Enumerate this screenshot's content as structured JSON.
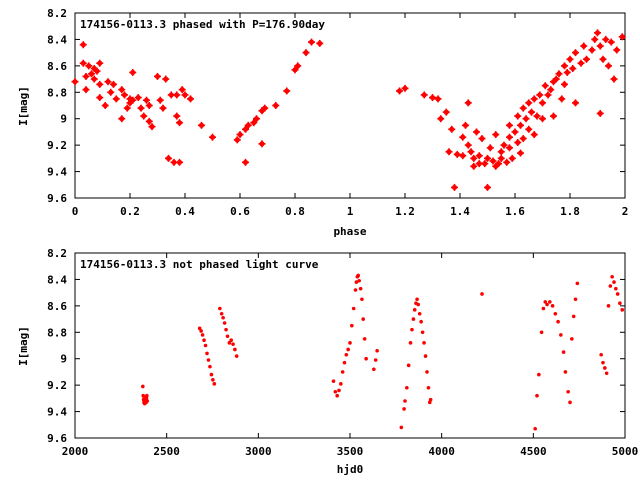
{
  "chart_data": [
    {
      "type": "scatter",
      "title": "174156-0113.3 phased with P=176.90day",
      "xlabel": "phase",
      "ylabel": "I[mag]",
      "xlim": [
        0,
        2
      ],
      "ylim": [
        8.2,
        9.6
      ],
      "y_inverted": true,
      "grid": false,
      "marker_color": "#ff0000",
      "marker": "star",
      "x_ticks": [
        "0",
        "0.2",
        "0.4",
        "0.6",
        "0.8",
        "1",
        "1.2",
        "1.4",
        "1.6",
        "1.8",
        "2"
      ],
      "y_ticks": [
        "8.2",
        "8.4",
        "8.6",
        "8.8",
        "9",
        "9.2",
        "9.4",
        "9.6"
      ],
      "series": [
        {
          "points": [
            [
              0.0,
              8.72
            ],
            [
              0.03,
              8.44
            ],
            [
              0.03,
              8.58
            ],
            [
              0.04,
              8.68
            ],
            [
              0.05,
              8.6
            ],
            [
              0.06,
              8.66
            ],
            [
              0.07,
              8.62
            ],
            [
              0.07,
              8.7
            ],
            [
              0.08,
              8.64
            ],
            [
              0.09,
              8.58
            ],
            [
              0.04,
              8.78
            ],
            [
              0.09,
              8.74
            ],
            [
              0.12,
              8.72
            ],
            [
              0.13,
              8.8
            ],
            [
              0.14,
              8.74
            ],
            [
              0.15,
              8.85
            ],
            [
              0.17,
              8.78
            ],
            [
              0.18,
              8.82
            ],
            [
              0.19,
              8.92
            ],
            [
              0.2,
              8.85
            ],
            [
              0.21,
              8.86
            ],
            [
              0.23,
              8.84
            ],
            [
              0.24,
              8.92
            ],
            [
              0.25,
              8.98
            ],
            [
              0.26,
              8.86
            ],
            [
              0.27,
              9.02
            ],
            [
              0.27,
              8.9
            ],
            [
              0.28,
              9.06
            ],
            [
              0.3,
              8.68
            ],
            [
              0.31,
              8.86
            ],
            [
              0.32,
              8.92
            ],
            [
              0.33,
              8.7
            ],
            [
              0.34,
              9.3
            ],
            [
              0.35,
              8.82
            ],
            [
              0.36,
              9.33
            ],
            [
              0.37,
              8.82
            ],
            [
              0.37,
              8.98
            ],
            [
              0.38,
              9.03
            ],
            [
              0.39,
              8.78
            ],
            [
              0.4,
              8.82
            ],
            [
              0.42,
              8.85
            ],
            [
              0.17,
              9.0
            ],
            [
              0.2,
              8.88
            ],
            [
              0.11,
              8.9
            ],
            [
              0.09,
              8.84
            ],
            [
              0.21,
              8.65
            ],
            [
              0.38,
              9.33
            ],
            [
              0.46,
              9.05
            ],
            [
              0.5,
              9.14
            ],
            [
              0.59,
              9.16
            ],
            [
              0.6,
              9.12
            ],
            [
              0.62,
              9.08
            ],
            [
              0.62,
              9.33
            ],
            [
              0.63,
              9.05
            ],
            [
              0.65,
              9.03
            ],
            [
              0.66,
              9.0
            ],
            [
              0.68,
              9.19
            ],
            [
              0.68,
              8.94
            ],
            [
              0.69,
              8.92
            ],
            [
              0.73,
              8.9
            ],
            [
              0.77,
              8.79
            ],
            [
              0.8,
              8.63
            ],
            [
              0.81,
              8.6
            ],
            [
              0.84,
              8.5
            ],
            [
              0.86,
              8.42
            ],
            [
              0.89,
              8.43
            ],
            [
              1.18,
              8.79
            ],
            [
              1.2,
              8.77
            ],
            [
              1.27,
              8.82
            ],
            [
              1.3,
              8.84
            ],
            [
              1.32,
              8.85
            ],
            [
              1.33,
              9.0
            ],
            [
              1.36,
              9.25
            ],
            [
              1.38,
              9.52
            ],
            [
              1.39,
              9.27
            ],
            [
              1.41,
              9.28
            ],
            [
              1.43,
              8.88
            ],
            [
              1.43,
              9.2
            ],
            [
              1.44,
              9.25
            ],
            [
              1.45,
              9.3
            ],
            [
              1.45,
              9.36
            ],
            [
              1.46,
              9.1
            ],
            [
              1.47,
              9.28
            ],
            [
              1.47,
              9.34
            ],
            [
              1.48,
              9.15
            ],
            [
              1.49,
              9.34
            ],
            [
              1.5,
              9.52
            ],
            [
              1.5,
              9.3
            ],
            [
              1.51,
              9.22
            ],
            [
              1.52,
              9.32
            ],
            [
              1.53,
              9.36
            ],
            [
              1.53,
              9.12
            ],
            [
              1.54,
              9.34
            ],
            [
              1.55,
              9.3
            ],
            [
              1.56,
              9.2
            ],
            [
              1.57,
              9.33
            ],
            [
              1.58,
              9.05
            ],
            [
              1.58,
              9.22
            ],
            [
              1.59,
              9.3
            ],
            [
              1.6,
              9.1
            ],
            [
              1.61,
              8.98
            ],
            [
              1.61,
              9.18
            ],
            [
              1.62,
              9.05
            ],
            [
              1.63,
              9.15
            ],
            [
              1.63,
              8.92
            ],
            [
              1.64,
              9.0
            ],
            [
              1.65,
              8.88
            ],
            [
              1.65,
              9.08
            ],
            [
              1.66,
              8.95
            ],
            [
              1.67,
              8.85
            ],
            [
              1.68,
              8.98
            ],
            [
              1.69,
              8.82
            ],
            [
              1.7,
              8.88
            ],
            [
              1.71,
              8.75
            ],
            [
              1.72,
              8.82
            ],
            [
              1.73,
              8.78
            ],
            [
              1.74,
              8.72
            ],
            [
              1.74,
              8.98
            ],
            [
              1.75,
              8.7
            ],
            [
              1.76,
              8.66
            ],
            [
              1.77,
              8.85
            ],
            [
              1.78,
              8.6
            ],
            [
              1.79,
              8.65
            ],
            [
              1.8,
              8.55
            ],
            [
              1.81,
              8.62
            ],
            [
              1.82,
              8.5
            ],
            [
              1.82,
              8.88
            ],
            [
              1.84,
              8.58
            ],
            [
              1.85,
              8.45
            ],
            [
              1.86,
              8.55
            ],
            [
              1.88,
              8.48
            ],
            [
              1.89,
              8.4
            ],
            [
              1.9,
              8.35
            ],
            [
              1.91,
              8.96
            ],
            [
              1.91,
              8.45
            ],
            [
              1.92,
              8.55
            ],
            [
              1.93,
              8.4
            ],
            [
              1.94,
              8.6
            ],
            [
              1.95,
              8.42
            ],
            [
              1.96,
              8.7
            ],
            [
              1.97,
              8.48
            ],
            [
              1.99,
              8.38
            ],
            [
              1.35,
              8.95
            ],
            [
              1.37,
              9.08
            ],
            [
              1.41,
              9.14
            ],
            [
              1.42,
              9.05
            ],
            [
              1.55,
              9.25
            ],
            [
              1.67,
              9.12
            ],
            [
              1.7,
              9.0
            ],
            [
              1.58,
              9.14
            ],
            [
              1.62,
              9.26
            ],
            [
              1.78,
              8.74
            ]
          ]
        }
      ]
    },
    {
      "type": "scatter",
      "title": "174156-0113.3 not phased light curve",
      "xlabel": "hjd0",
      "ylabel": "I[mag]",
      "xlim": [
        2000,
        5000
      ],
      "ylim": [
        8.2,
        9.6
      ],
      "y_inverted": true,
      "grid": false,
      "marker_color": "#ff0000",
      "marker": "dot",
      "x_ticks": [
        "2000",
        "2500",
        "3000",
        "3500",
        "4000",
        "4500",
        "5000"
      ],
      "y_ticks": [
        "8.2",
        "8.4",
        "8.6",
        "8.8",
        "9",
        "9.2",
        "9.4",
        "9.6"
      ],
      "series": [
        {
          "points": [
            [
              2370,
              9.21
            ],
            [
              2372,
              9.28
            ],
            [
              2374,
              9.31
            ],
            [
              2376,
              9.33
            ],
            [
              2378,
              9.3
            ],
            [
              2380,
              9.34
            ],
            [
              2382,
              9.32
            ],
            [
              2384,
              9.29
            ],
            [
              2386,
              9.31
            ],
            [
              2388,
              9.33
            ],
            [
              2390,
              9.3
            ],
            [
              2392,
              9.28
            ],
            [
              2394,
              9.32
            ],
            [
              2680,
              8.77
            ],
            [
              2688,
              8.79
            ],
            [
              2696,
              8.82
            ],
            [
              2704,
              8.86
            ],
            [
              2712,
              8.9
            ],
            [
              2720,
              8.96
            ],
            [
              2728,
              9.01
            ],
            [
              2736,
              9.06
            ],
            [
              2744,
              9.12
            ],
            [
              2752,
              9.16
            ],
            [
              2760,
              9.19
            ],
            [
              2790,
              8.62
            ],
            [
              2800,
              8.66
            ],
            [
              2808,
              8.69
            ],
            [
              2816,
              8.73
            ],
            [
              2824,
              8.78
            ],
            [
              2832,
              8.83
            ],
            [
              2842,
              8.88
            ],
            [
              2852,
              8.86
            ],
            [
              2862,
              8.89
            ],
            [
              2872,
              8.93
            ],
            [
              2882,
              8.98
            ],
            [
              3410,
              9.17
            ],
            [
              3420,
              9.25
            ],
            [
              3430,
              9.28
            ],
            [
              3440,
              9.24
            ],
            [
              3450,
              9.19
            ],
            [
              3460,
              9.1
            ],
            [
              3470,
              9.03
            ],
            [
              3480,
              8.97
            ],
            [
              3490,
              8.93
            ],
            [
              3500,
              8.88
            ],
            [
              3510,
              8.75
            ],
            [
              3520,
              8.62
            ],
            [
              3530,
              8.48
            ],
            [
              3535,
              8.42
            ],
            [
              3540,
              8.38
            ],
            [
              3545,
              8.37
            ],
            [
              3550,
              8.41
            ],
            [
              3558,
              8.47
            ],
            [
              3565,
              8.55
            ],
            [
              3572,
              8.7
            ],
            [
              3580,
              8.85
            ],
            [
              3588,
              9.0
            ],
            [
              3630,
              9.08
            ],
            [
              3640,
              9.01
            ],
            [
              3648,
              8.94
            ],
            [
              3780,
              9.52
            ],
            [
              3795,
              9.38
            ],
            [
              3800,
              9.32
            ],
            [
              3810,
              9.22
            ],
            [
              3820,
              9.05
            ],
            [
              3830,
              8.88
            ],
            [
              3838,
              8.78
            ],
            [
              3846,
              8.7
            ],
            [
              3853,
              8.63
            ],
            [
              3860,
              8.58
            ],
            [
              3866,
              8.55
            ],
            [
              3872,
              8.59
            ],
            [
              3880,
              8.66
            ],
            [
              3888,
              8.72
            ],
            [
              3896,
              8.8
            ],
            [
              3904,
              8.88
            ],
            [
              3912,
              8.98
            ],
            [
              3920,
              9.1
            ],
            [
              3928,
              9.22
            ],
            [
              3935,
              9.33
            ],
            [
              3940,
              9.31
            ],
            [
              4220,
              8.51
            ],
            [
              4510,
              9.53
            ],
            [
              4520,
              9.28
            ],
            [
              4530,
              9.12
            ],
            [
              4545,
              8.8
            ],
            [
              4555,
              8.62
            ],
            [
              4565,
              8.57
            ],
            [
              4575,
              8.59
            ],
            [
              4590,
              8.57
            ],
            [
              4605,
              8.6
            ],
            [
              4620,
              8.66
            ],
            [
              4635,
              8.72
            ],
            [
              4650,
              8.82
            ],
            [
              4665,
              8.95
            ],
            [
              4675,
              9.1
            ],
            [
              4690,
              9.25
            ],
            [
              4700,
              9.33
            ],
            [
              4710,
              8.85
            ],
            [
              4720,
              8.68
            ],
            [
              4730,
              8.55
            ],
            [
              4740,
              8.43
            ],
            [
              4870,
              8.97
            ],
            [
              4880,
              9.03
            ],
            [
              4890,
              9.07
            ],
            [
              4900,
              9.11
            ],
            [
              4910,
              8.6
            ],
            [
              4920,
              8.45
            ],
            [
              4930,
              8.38
            ],
            [
              4940,
              8.42
            ],
            [
              4950,
              8.47
            ],
            [
              4960,
              8.51
            ],
            [
              4972,
              8.58
            ],
            [
              4985,
              8.63
            ]
          ]
        }
      ]
    }
  ]
}
